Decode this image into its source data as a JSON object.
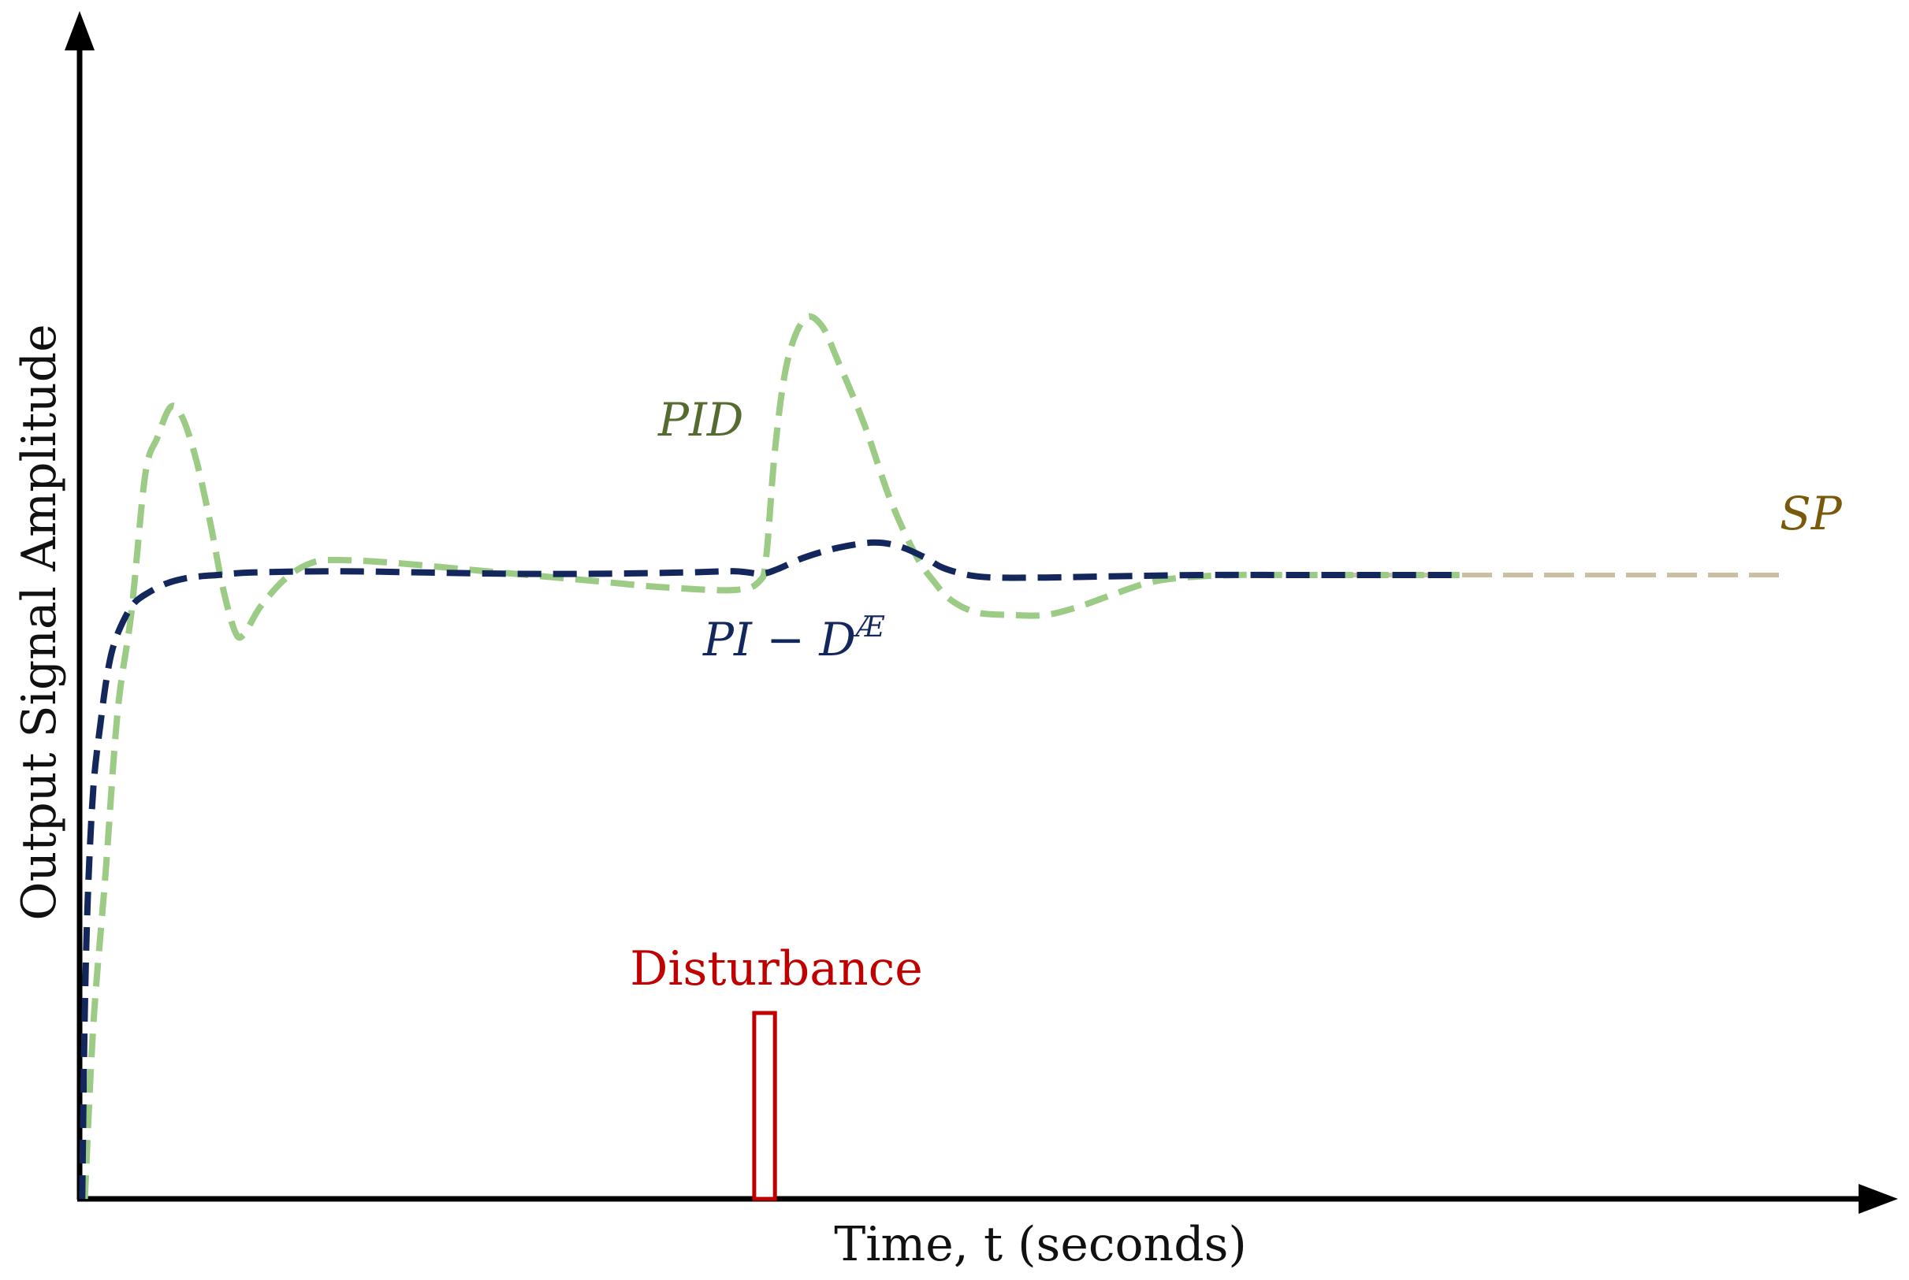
{
  "chart_data": {
    "type": "line",
    "title": "",
    "xlabel": "Time, t (seconds)",
    "ylabel": "Output Signal Amplitude",
    "x_ticks": [],
    "y_ticks": [],
    "xlim": [
      0,
      100
    ],
    "ylim": [
      0,
      100
    ],
    "grid": false,
    "legend": "none (series labelled inline)",
    "series": [
      {
        "name": "SP",
        "label": "SP",
        "color": "#F5B800",
        "end_color": "#7A5A0A",
        "style": "solid thick",
        "x": [
          0,
          100
        ],
        "y": [
          50,
          50
        ]
      },
      {
        "name": "PID",
        "label": "PID",
        "color": "#9CCB85",
        "style": "dashed",
        "x": [
          0.3,
          0.8,
          1.5,
          2.2,
          3.0,
          3.8,
          4.5,
          5.3,
          6.0,
          6.8,
          7.6,
          8.3,
          9.0,
          9.5,
          10.5,
          12.0,
          13.5,
          15.0,
          18.0,
          22.0,
          26.0,
          30.0,
          34.0,
          38.0,
          39.4,
          39.8,
          40.3,
          41.0,
          42.0,
          43.0,
          44.0,
          45.5,
          47.0,
          48.5,
          49.5,
          50.5,
          52.0,
          54.0,
          56.0,
          58.0,
          60.0,
          62.0,
          64.0,
          67.0,
          70.0,
          73.0,
          77.0,
          80.0
        ],
        "y": [
          0,
          14,
          26,
          39,
          47,
          58,
          61,
          63.5,
          62.5,
          59,
          54,
          49,
          45.5,
          45.2,
          47.5,
          49.8,
          51.0,
          51.2,
          51.0,
          50.5,
          50.0,
          49.5,
          49.0,
          48.8,
          49.5,
          51.5,
          60,
          67,
          70.5,
          70.0,
          67.0,
          62.0,
          56.0,
          51.5,
          49.5,
          48.0,
          47.0,
          46.8,
          46.8,
          47.5,
          48.5,
          49.4,
          49.8,
          50.0,
          50.0,
          50.0,
          50.0,
          50.0
        ]
      },
      {
        "name": "PI − D^Æ",
        "label_main": "PI − D",
        "label_sup": "Æ",
        "color": "#13275C",
        "style": "dashed",
        "x": [
          0.15,
          0.3,
          0.5,
          0.8,
          1.2,
          1.6,
          2.0,
          2.6,
          3.2,
          4.0,
          5.0,
          6.0,
          7.0,
          8.0,
          10.0,
          15.0,
          20.0,
          25.0,
          30.0,
          35.0,
          38.0,
          39.5,
          40.5,
          42.0,
          44.0,
          46.0,
          47.5,
          49.0,
          50.0,
          51.5,
          53.0,
          56.0,
          60.0,
          65.0,
          70.0,
          80.0
        ],
        "y": [
          0,
          15,
          25,
          33,
          38,
          42,
          44.5,
          46.5,
          47.8,
          48.6,
          49.3,
          49.7,
          49.9,
          50.0,
          50.2,
          50.3,
          50.2,
          50.1,
          50.1,
          50.2,
          50.3,
          50.1,
          50.5,
          51.4,
          52.2,
          52.6,
          52.3,
          51.4,
          50.6,
          50.0,
          49.8,
          49.8,
          49.9,
          50.0,
          50.0,
          50.0
        ]
      },
      {
        "name": "Disturbance",
        "label": "Disturbance",
        "color": "#C00000",
        "style": "pulse outline",
        "x_start": 39.1,
        "x_end": 40.3,
        "y_top": 15,
        "y_base": 0
      }
    ]
  }
}
